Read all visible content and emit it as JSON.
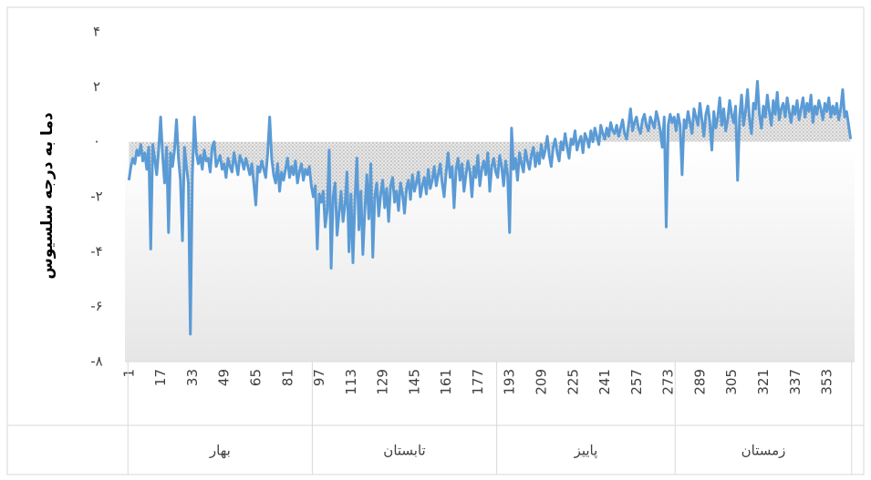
{
  "chart_data": {
    "type": "line",
    "y_label": "دما به درجه سلسیوس",
    "x": [
      1,
      2,
      3,
      4,
      5,
      6,
      7,
      8,
      9,
      10,
      11,
      12,
      13,
      14,
      15,
      16,
      17,
      18,
      19,
      20,
      21,
      22,
      23,
      24,
      25,
      26,
      27,
      28,
      29,
      30,
      31,
      32,
      33,
      34,
      35,
      36,
      37,
      38,
      39,
      40,
      41,
      42,
      43,
      44,
      45,
      46,
      47,
      48,
      49,
      50,
      51,
      52,
      53,
      54,
      55,
      56,
      57,
      58,
      59,
      60,
      61,
      62,
      63,
      64,
      65,
      66,
      67,
      68,
      69,
      70,
      71,
      72,
      73,
      74,
      75,
      76,
      77,
      78,
      79,
      80,
      81,
      82,
      83,
      84,
      85,
      86,
      87,
      88,
      89,
      90,
      91,
      92,
      93,
      94,
      95,
      96,
      97,
      98,
      99,
      100,
      101,
      102,
      103,
      104,
      105,
      106,
      107,
      108,
      109,
      110,
      111,
      112,
      113,
      114,
      115,
      116,
      117,
      118,
      119,
      120,
      121,
      122,
      123,
      124,
      125,
      126,
      127,
      128,
      129,
      130,
      131,
      132,
      133,
      134,
      135,
      136,
      137,
      138,
      139,
      140,
      141,
      142,
      143,
      144,
      145,
      146,
      147,
      148,
      149,
      150,
      151,
      152,
      153,
      154,
      155,
      156,
      157,
      158,
      159,
      160,
      161,
      162,
      163,
      164,
      165,
      166,
      167,
      168,
      169,
      170,
      171,
      172,
      173,
      174,
      175,
      176,
      177,
      178,
      179,
      180,
      181,
      182,
      183,
      184,
      185,
      186,
      187,
      188,
      189,
      190,
      191,
      192,
      193,
      194,
      195,
      196,
      197,
      198,
      199,
      200,
      201,
      202,
      203,
      204,
      205,
      206,
      207,
      208,
      209,
      210,
      211,
      212,
      213,
      214,
      215,
      216,
      217,
      218,
      219,
      220,
      221,
      222,
      223,
      224,
      225,
      226,
      227,
      228,
      229,
      230,
      231,
      232,
      233,
      234,
      235,
      236,
      237,
      238,
      239,
      240,
      241,
      242,
      243,
      244,
      245,
      246,
      247,
      248,
      249,
      250,
      251,
      252,
      253,
      254,
      255,
      256,
      257,
      258,
      259,
      260,
      261,
      262,
      263,
      264,
      265,
      266,
      267,
      268,
      269,
      270,
      271,
      272,
      273,
      274,
      275,
      276,
      277,
      278,
      279,
      280,
      281,
      282,
      283,
      284,
      285,
      286,
      287,
      288,
      289,
      290,
      291,
      292,
      293,
      294,
      295,
      296,
      297,
      298,
      299,
      300,
      301,
      302,
      303,
      304,
      305,
      306,
      307,
      308,
      309,
      310,
      311,
      312,
      313,
      314,
      315,
      316,
      317,
      318,
      319,
      320,
      321,
      322,
      323,
      324,
      325,
      326,
      327,
      328,
      329,
      330,
      331,
      332,
      333,
      334,
      335,
      336,
      337,
      338,
      339,
      340,
      341,
      342,
      343,
      344,
      345,
      346,
      347,
      348,
      349,
      350,
      351,
      352,
      353,
      354,
      355,
      356,
      357,
      358,
      359,
      360,
      361,
      362,
      363,
      364,
      365
    ],
    "series": [
      {
        "color": "#5b9bd5",
        "values": [
          -1.4,
          -0.9,
          -0.6,
          -0.8,
          -0.3,
          -0.5,
          -0.1,
          -0.7,
          -0.4,
          -1.0,
          -0.2,
          -3.9,
          -0.1,
          -0.6,
          -1.2,
          -0.3,
          0.9,
          -0.5,
          -1.5,
          -0.2,
          -3.3,
          -0.4,
          -0.9,
          -0.3,
          0.8,
          -0.6,
          -1.4,
          -3.6,
          -0.2,
          -0.9,
          -1.5,
          -7.0,
          -1.2,
          0.9,
          -0.4,
          -0.8,
          -0.5,
          -1.0,
          -0.3,
          -0.7,
          -0.6,
          -1.1,
          -0.2,
          0.0,
          -0.9,
          -0.7,
          -0.5,
          -1.0,
          -0.8,
          -1.3,
          -0.6,
          -0.9,
          -1.1,
          -0.4,
          -0.8,
          -1.2,
          -0.5,
          -0.7,
          -1.0,
          -0.6,
          -0.9,
          -1.2,
          -0.8,
          -1.5,
          -2.3,
          -0.9,
          -1.1,
          -0.7,
          -1.0,
          -1.3,
          -0.4,
          0.9,
          -0.6,
          -1.2,
          -1.5,
          -0.8,
          -1.8,
          -1.1,
          -1.4,
          -1.0,
          -0.6,
          -1.3,
          -0.9,
          -1.2,
          -0.7,
          -1.5,
          -1.1,
          -0.8,
          -1.4,
          -1.0,
          -1.2,
          -0.9,
          -1.6,
          -2.0,
          -1.6,
          -3.9,
          -1.9,
          -2.2,
          -1.8,
          -3.1,
          -2.5,
          -0.3,
          -4.6,
          -2.0,
          -1.5,
          -3.4,
          -2.6,
          -1.8,
          -2.9,
          -2.3,
          -1.1,
          -4.0,
          -1.9,
          -4.4,
          -2.1,
          -0.6,
          -3.2,
          -1.8,
          -4.1,
          -2.5,
          -1.2,
          -2.8,
          -0.8,
          -4.2,
          -2.0,
          -1.5,
          -2.7,
          -1.9,
          -1.4,
          -2.4,
          -1.7,
          -2.9,
          -1.6,
          -1.3,
          -2.2,
          -1.8,
          -2.5,
          -1.5,
          -1.9,
          -2.6,
          -1.7,
          -1.4,
          -2.1,
          -1.2,
          -1.8,
          -1.5,
          -1.1,
          -2.0,
          -1.6,
          -1.3,
          -1.9,
          -1.0,
          -1.7,
          -1.4,
          -0.9,
          -1.6,
          -1.2,
          -0.8,
          -1.5,
          -2.0,
          -1.1,
          -0.4,
          -1.3,
          -0.9,
          -2.4,
          -1.0,
          -0.6,
          -1.4,
          -0.8,
          -1.8,
          -1.2,
          -0.7,
          -1.1,
          -2.0,
          -0.9,
          -1.3,
          -0.5,
          -1.6,
          -1.0,
          -0.7,
          -1.2,
          -0.4,
          -1.8,
          -0.9,
          -0.6,
          -1.1,
          -1.3,
          -0.5,
          -0.9,
          -1.6,
          -0.7,
          -1.2,
          -3.3,
          0.5,
          -1.0,
          -0.6,
          -1.4,
          -0.4,
          -0.8,
          -1.1,
          -0.3,
          -0.7,
          -1.0,
          -0.5,
          -0.2,
          -0.9,
          -0.4,
          -0.8,
          -0.1,
          -0.6,
          -0.3,
          0.2,
          -0.5,
          -0.9,
          -0.2,
          0.1,
          -0.4,
          -0.7,
          0.0,
          -0.3,
          0.3,
          -0.2,
          -0.6,
          0.1,
          -0.1,
          0.4,
          -0.3,
          0.0,
          0.2,
          -0.4,
          0.3,
          0.1,
          -0.2,
          0.4,
          0.0,
          0.5,
          0.2,
          -0.1,
          0.6,
          0.3,
          0.1,
          0.5,
          0.2,
          0.7,
          0.4,
          0.3,
          0.6,
          0.2,
          0.5,
          0.8,
          0.3,
          0.1,
          0.6,
          1.2,
          0.4,
          0.7,
          0.9,
          0.5,
          0.3,
          0.8,
          1.0,
          0.6,
          0.4,
          0.9,
          0.7,
          0.5,
          1.1,
          0.8,
          0.4,
          -0.2,
          0.9,
          -3.1,
          0.6,
          1.0,
          0.7,
          0.9,
          0.4,
          1.0,
          0.6,
          -1.2,
          0.8,
          0.5,
          1.1,
          0.7,
          0.3,
          1.2,
          0.9,
          0.6,
          1.4,
          0.8,
          0.2,
          1.0,
          1.3,
          0.7,
          -0.3,
          1.1,
          0.5,
          0.9,
          1.6,
          0.6,
          1.2,
          0.4,
          0.8,
          1.5,
          1.0,
          0.7,
          1.3,
          -1.4,
          0.9,
          1.7,
          0.6,
          1.1,
          1.9,
          0.8,
          0.3,
          1.4,
          1.2,
          2.2,
          1.0,
          0.5,
          1.3,
          0.9,
          1.7,
          1.1,
          0.6,
          1.5,
          1.0,
          1.8,
          0.8,
          1.2,
          1.4,
          0.9,
          1.6,
          1.1,
          0.7,
          1.3,
          1.0,
          1.5,
          0.8,
          1.2,
          1.6,
          0.9,
          1.4,
          1.1,
          1.7,
          0.7,
          1.3,
          1.0,
          1.5,
          1.2,
          0.8,
          1.4,
          1.1,
          1.6,
          0.9,
          1.3,
          1.0,
          1.4,
          0.8,
          1.2,
          1.9,
          0.9,
          1.1,
          0.6,
          0.1
        ]
      }
    ],
    "xlim": [
      -1,
      367
    ],
    "xticks": [
      1,
      17,
      33,
      49,
      65,
      81,
      97,
      113,
      129,
      145,
      161,
      177,
      193,
      209,
      225,
      241,
      257,
      273,
      289,
      305,
      321,
      337,
      353
    ],
    "ylim": [
      -8,
      4
    ],
    "yticks": [
      {
        "value": 4,
        "label": "۴"
      },
      {
        "value": 2,
        "label": "۲"
      },
      {
        "value": 0,
        "label": "۰"
      },
      {
        "value": -2,
        "label": "-۲"
      },
      {
        "value": -4,
        "label": "-۴"
      },
      {
        "value": -6,
        "label": "-۶"
      },
      {
        "value": -8,
        "label": "-۸"
      }
    ],
    "groups": [
      {
        "name": "بهار",
        "from": 1,
        "to": 93
      },
      {
        "name": "تابستان",
        "from": 94,
        "to": 186
      },
      {
        "name": "پاییز",
        "from": 187,
        "to": 276
      },
      {
        "name": "زمستان",
        "from": 277,
        "to": 365
      }
    ]
  }
}
